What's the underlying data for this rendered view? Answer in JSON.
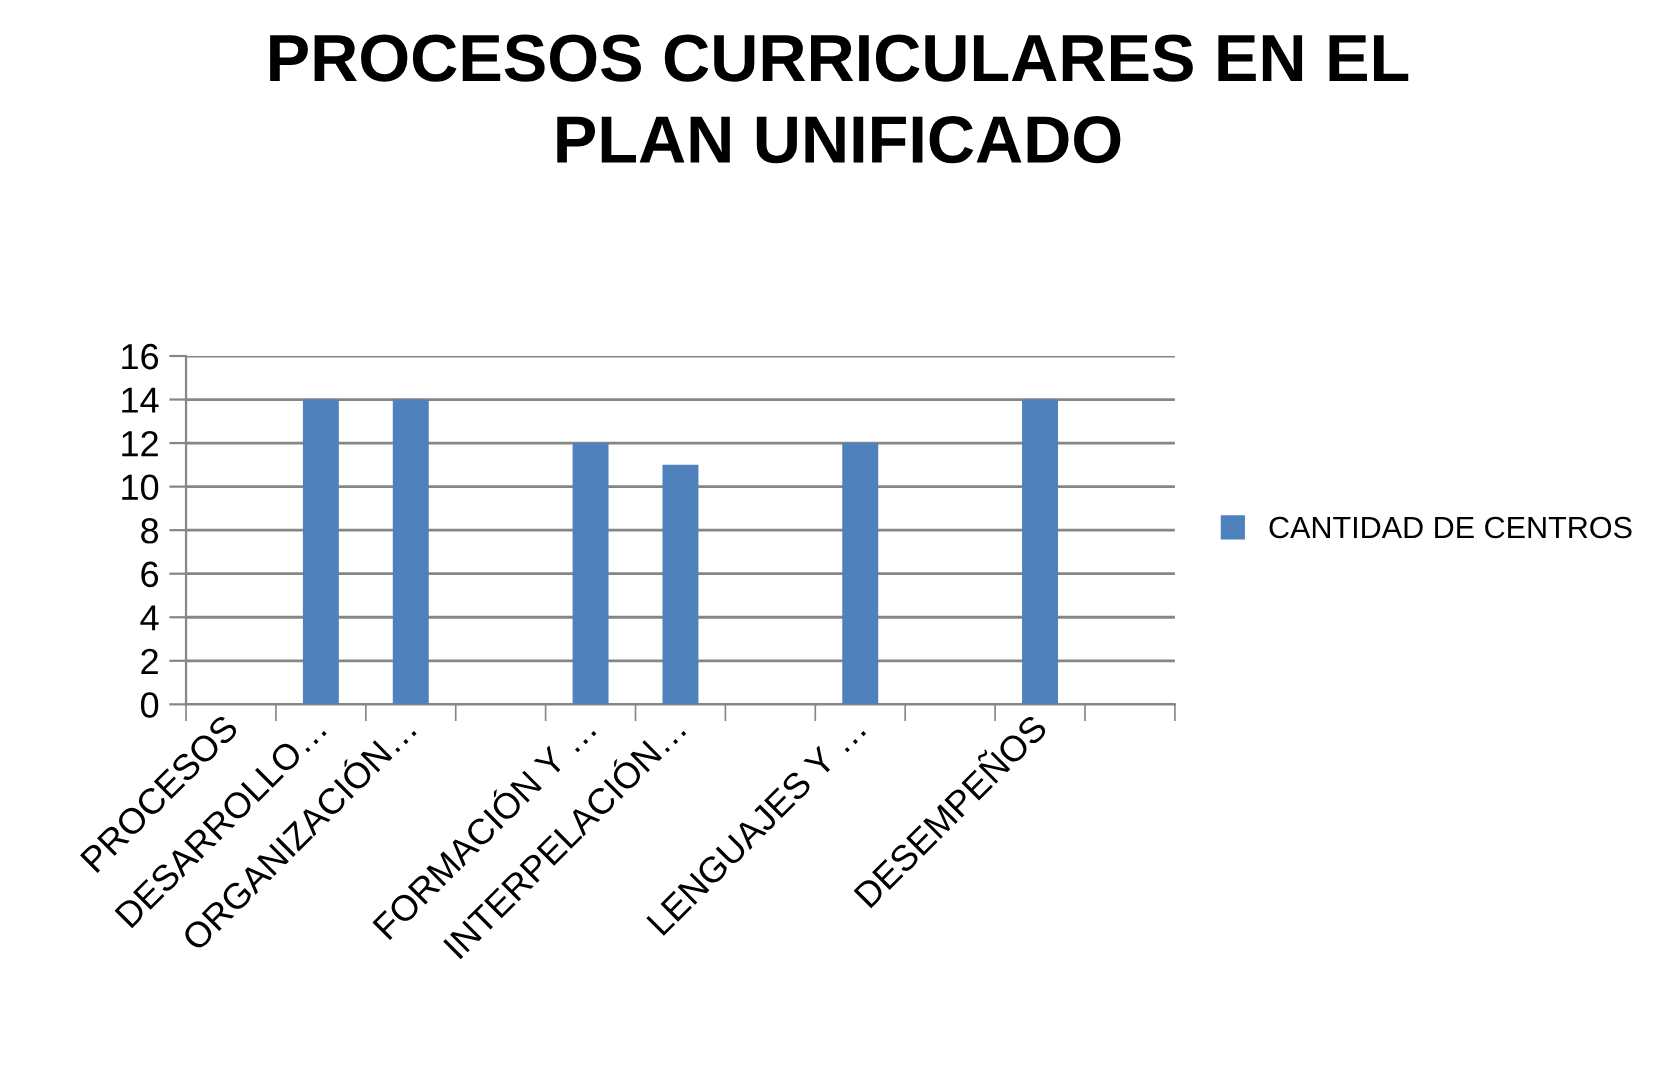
{
  "chart_data": {
    "type": "bar",
    "title": "PROCESOS CURRICULARES EN EL\nPLAN UNIFICADO",
    "categories": [
      "PROCESOS",
      "DESARROLLO…",
      "ORGANIZACIÓN…",
      null,
      "FORMACIÓN Y …",
      "INTERPELACIÓN…",
      null,
      "LENGUAJES Y …",
      null,
      "DESEMPEÑOS",
      null
    ],
    "series": [
      {
        "name": "CANTIDAD DE CENTROS",
        "color": "#4f81bd",
        "values": [
          null,
          14,
          14,
          null,
          12,
          11,
          null,
          12,
          null,
          14,
          null
        ]
      }
    ],
    "ylim": [
      0,
      16
    ],
    "yticks": [
      0,
      2,
      4,
      6,
      8,
      10,
      12,
      14,
      16
    ],
    "grid": "y",
    "legend": "right"
  }
}
